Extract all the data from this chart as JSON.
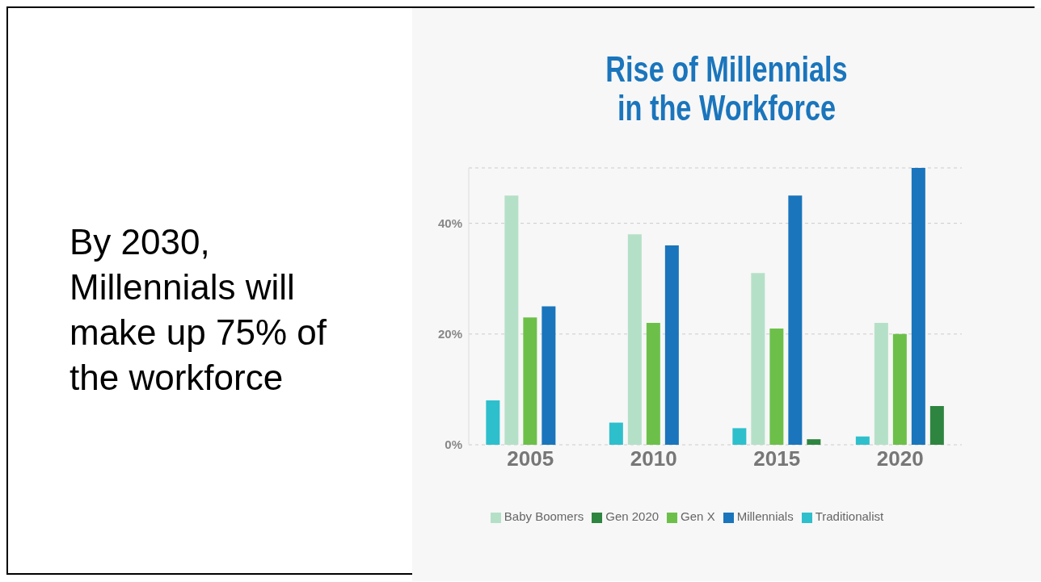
{
  "chart_data": {
    "type": "bar",
    "title": "Rise of Millennials\nin the Workforce",
    "annotations": [
      "By 2030, Millennials will make up 75% of the workforce"
    ],
    "categories": [
      "2005",
      "2010",
      "2015",
      "2020"
    ],
    "series": [
      {
        "name": "Traditionalist",
        "color": "#2ebfcc",
        "values": [
          8,
          4,
          3,
          1.5
        ]
      },
      {
        "name": "Baby Boomers",
        "color": "#b5e0c8",
        "values": [
          45,
          38,
          31,
          22
        ]
      },
      {
        "name": "Gen X",
        "color": "#6cc04a",
        "values": [
          23,
          22,
          21,
          20
        ]
      },
      {
        "name": "Millennials",
        "color": "#1a75bc",
        "values": [
          25,
          36,
          45,
          50
        ]
      },
      {
        "name": "Gen 2020",
        "color": "#2e8540",
        "values": [
          null,
          null,
          1,
          7
        ]
      }
    ],
    "ylim": [
      0,
      50
    ],
    "yticks": [
      {
        "value": 0,
        "label": "0%"
      },
      {
        "value": 20,
        "label": "20%"
      },
      {
        "value": 40,
        "label": "40%"
      }
    ],
    "grid": "y",
    "legend": "bottom"
  }
}
